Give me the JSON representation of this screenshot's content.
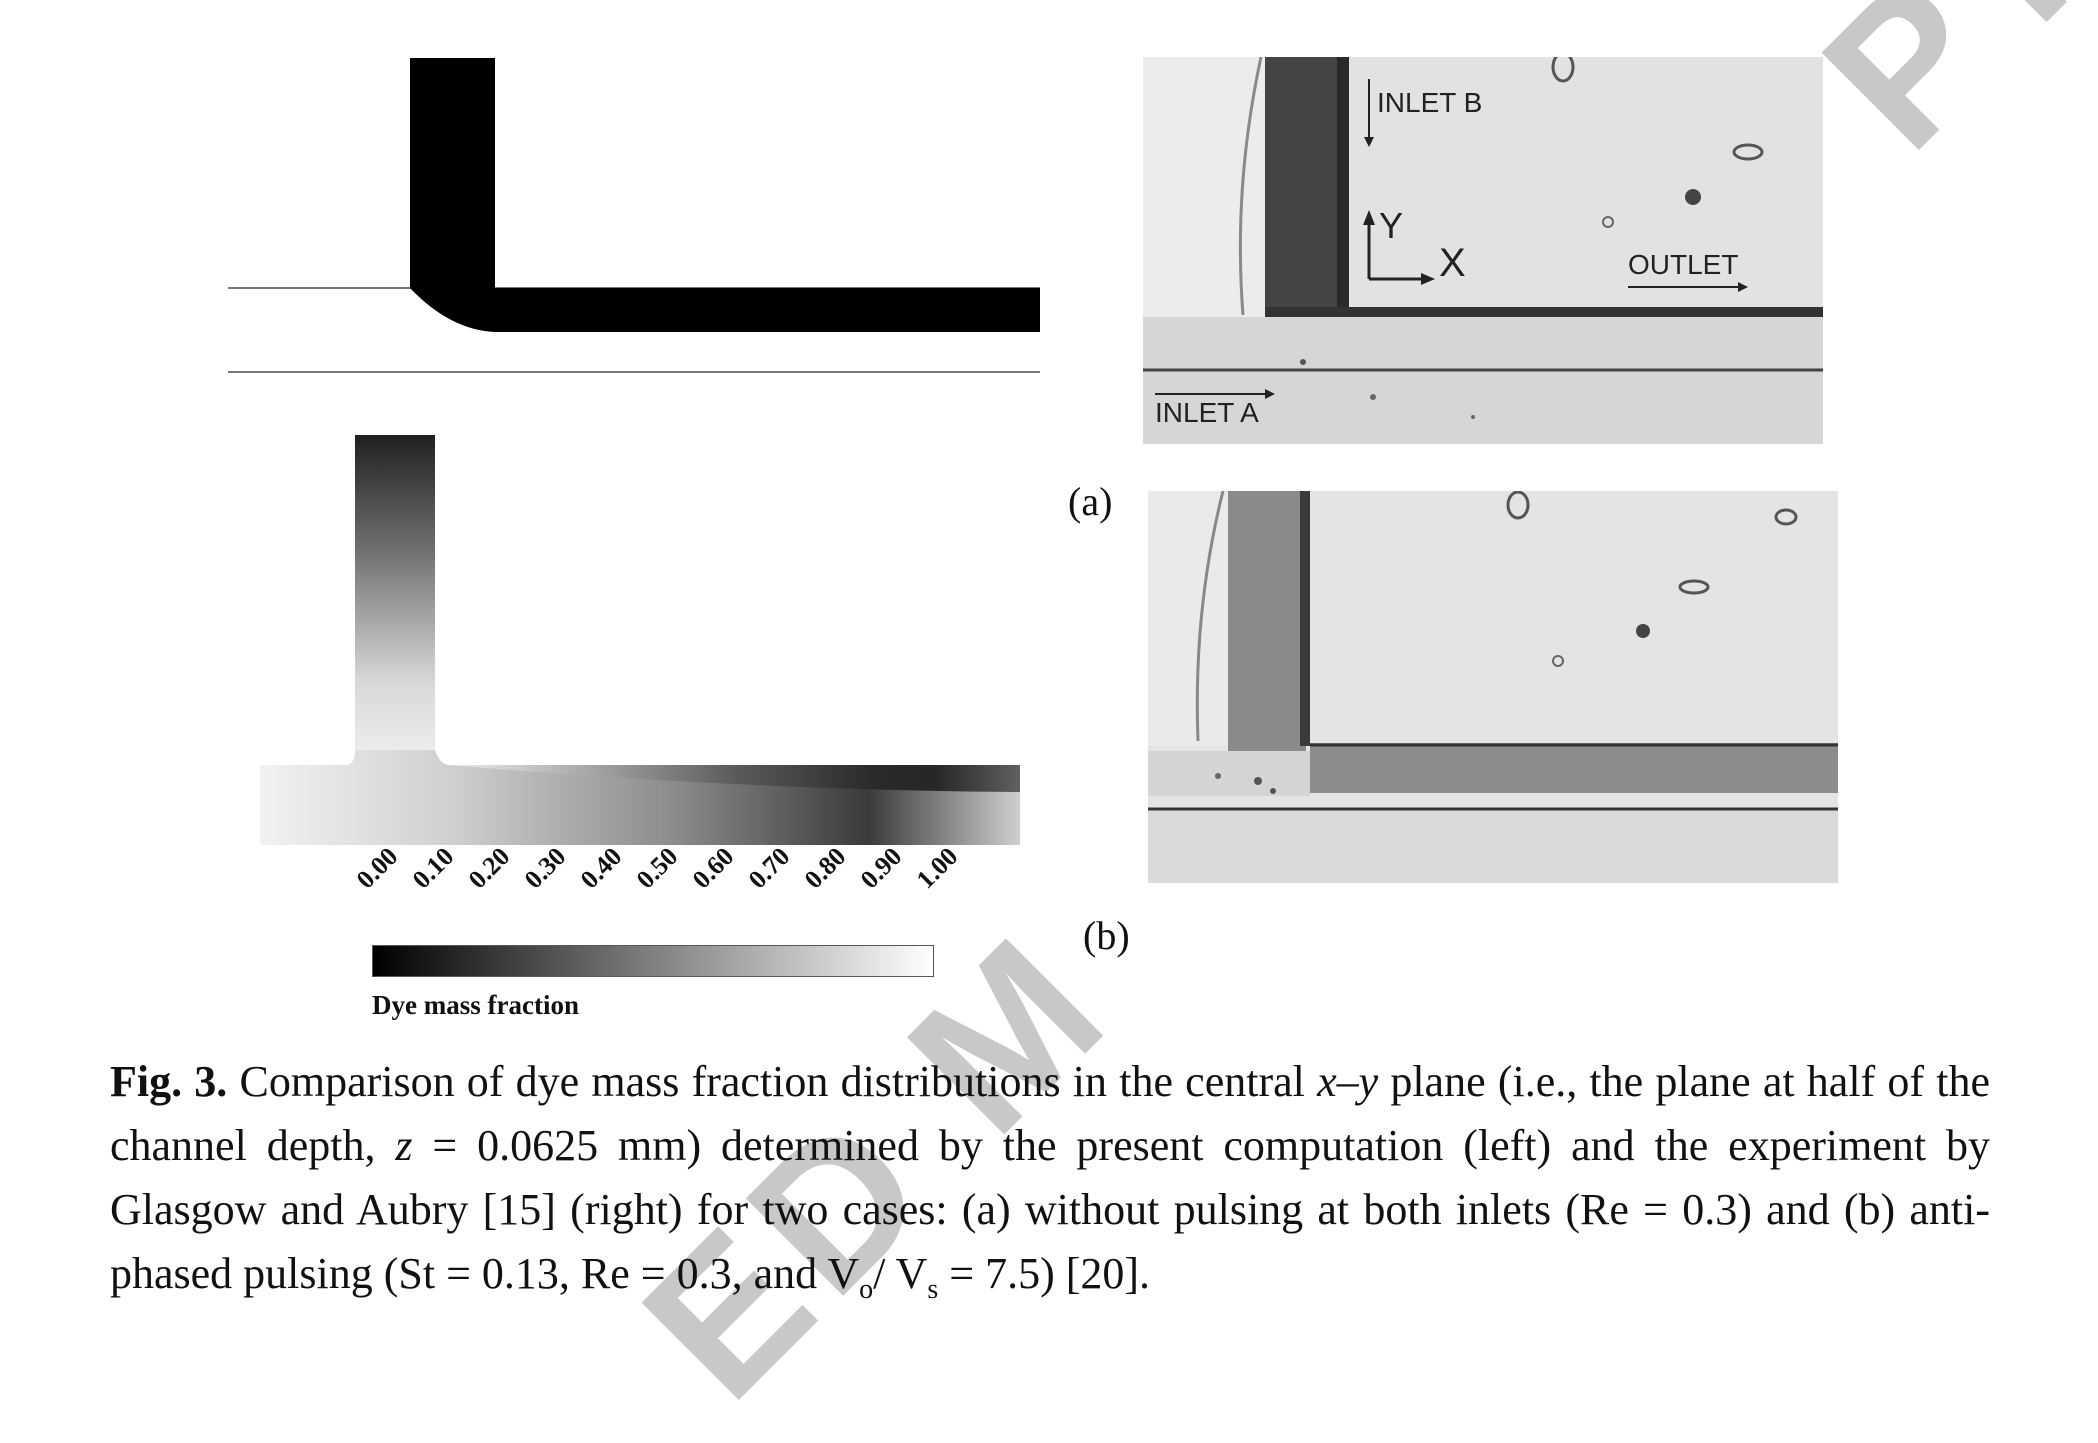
{
  "watermark": {
    "top_right": "PT",
    "bottom": "ED M"
  },
  "panels": {
    "a_label": "(a)",
    "b_label": "(b)"
  },
  "photo_labels": {
    "inlet_b": "INLET B",
    "inlet_a": "INLET A",
    "outlet": "OUTLET",
    "axis_y": "Y",
    "axis_x": "X"
  },
  "colorbar": {
    "ticks": [
      "0.00",
      "0.10",
      "0.20",
      "0.30",
      "0.40",
      "0.50",
      "0.60",
      "0.70",
      "0.80",
      "0.90",
      "1.00"
    ],
    "title": "Dye mass fraction",
    "range": [
      0,
      1
    ],
    "colors": [
      "#000000",
      "#ffffff"
    ]
  },
  "caption": {
    "label": "Fig. 3.",
    "text_1": " Comparison of dye mass fraction distributions in the central ",
    "plane_italic": "x–y",
    "text_2": " plane (i.e., the plane at half of the channel depth, ",
    "z_italic": "z",
    "text_3": " = 0.0625 mm) determined by the present computation (left) and the experiment by Glasgow and Aubry [15] (right) for two cases: (a) without pulsing at both inlets (Re = 0.3) and (b) anti-phased pulsing (St = 0.13, Re = 0.3, and V",
    "sub_o": "o",
    "text_4": "/ V",
    "sub_s": "s",
    "text_5": " = 7.5) [20]."
  }
}
